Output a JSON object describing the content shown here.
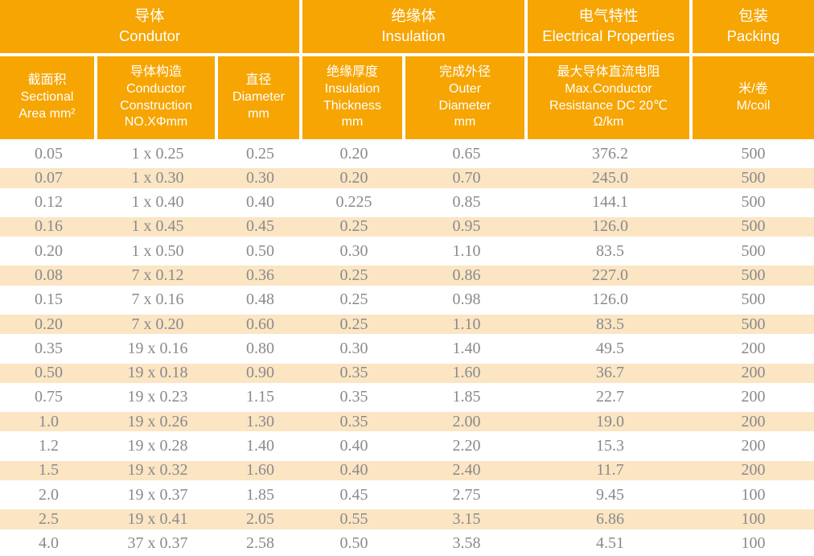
{
  "colors": {
    "header_bg": "#F6A502",
    "header_text": "#FFFFFF",
    "row_alt_bg": "#FBE5C3",
    "row_bg": "#FFFFFF",
    "data_text": "#8A8A8C"
  },
  "table": {
    "groups": [
      {
        "zh": "导体",
        "en": "Condutor",
        "span": 3
      },
      {
        "zh": "绝缘体",
        "en": "Insulation",
        "span": 2
      },
      {
        "zh": "电气特性",
        "en": "Electrical Properties",
        "span": 1
      },
      {
        "zh": "包装",
        "en": "Packing",
        "span": 1
      }
    ],
    "columns": [
      {
        "id": "sectional-area",
        "lines": [
          "截面积",
          "Sectional",
          "Area mm²"
        ]
      },
      {
        "id": "conductor-construction",
        "lines": [
          "导体构造",
          "Conductor",
          "Construction",
          "NO.XΦmm"
        ]
      },
      {
        "id": "diameter",
        "lines": [
          "直径",
          "Diameter",
          "mm"
        ]
      },
      {
        "id": "insulation-thickness",
        "lines": [
          "绝缘厚度",
          "Insulation",
          "Thickness",
          "mm"
        ]
      },
      {
        "id": "outer-diameter",
        "lines": [
          "完成外径",
          "Outer",
          "Diameter",
          "mm"
        ]
      },
      {
        "id": "max-resistance",
        "lines": [
          "最大导体直流电阻",
          "Max.Conductor",
          "Resistance DC 20℃",
          "Ω/km"
        ]
      },
      {
        "id": "packing",
        "lines": [
          "米/卷",
          "M/coil"
        ]
      }
    ],
    "rows": [
      [
        "0.05",
        "1 x 0.25",
        "0.25",
        "0.20",
        "0.65",
        "376.2",
        "500"
      ],
      [
        "0.07",
        "1 x 0.30",
        "0.30",
        "0.20",
        "0.70",
        "245.0",
        "500"
      ],
      [
        "0.12",
        "1 x 0.40",
        "0.40",
        "0.225",
        "0.85",
        "144.1",
        "500"
      ],
      [
        "0.16",
        "1 x 0.45",
        "0.45",
        "0.25",
        "0.95",
        "126.0",
        "500"
      ],
      [
        "0.20",
        "1 x 0.50",
        "0.50",
        "0.30",
        "1.10",
        "83.5",
        "500"
      ],
      [
        "0.08",
        "7 x 0.12",
        "0.36",
        "0.25",
        "0.86",
        "227.0",
        "500"
      ],
      [
        "0.15",
        "7 x 0.16",
        "0.48",
        "0.25",
        "0.98",
        "126.0",
        "500"
      ],
      [
        "0.20",
        "7 x 0.20",
        "0.60",
        "0.25",
        "1.10",
        "83.5",
        "500"
      ],
      [
        "0.35",
        "19 x 0.16",
        "0.80",
        "0.30",
        "1.40",
        "49.5",
        "200"
      ],
      [
        "0.50",
        "19 x 0.18",
        "0.90",
        "0.35",
        "1.60",
        "36.7",
        "200"
      ],
      [
        "0.75",
        "19 x 0.23",
        "1.15",
        "0.35",
        "1.85",
        "22.7",
        "200"
      ],
      [
        "1.0",
        "19 x 0.26",
        "1.30",
        "0.35",
        "2.00",
        "19.0",
        "200"
      ],
      [
        "1.2",
        "19 x 0.28",
        "1.40",
        "0.40",
        "2.20",
        "15.3",
        "200"
      ],
      [
        "1.5",
        "19 x 0.32",
        "1.60",
        "0.40",
        "2.40",
        "11.7",
        "200"
      ],
      [
        "2.0",
        "19 x 0.37",
        "1.85",
        "0.45",
        "2.75",
        "9.45",
        "100"
      ],
      [
        "2.5",
        "19 x 0.41",
        "2.05",
        "0.55",
        "3.15",
        "6.86",
        "100"
      ],
      [
        "4.0",
        "37 x 0.37",
        "2.58",
        "0.50",
        "3.58",
        "4.51",
        "100"
      ]
    ]
  }
}
